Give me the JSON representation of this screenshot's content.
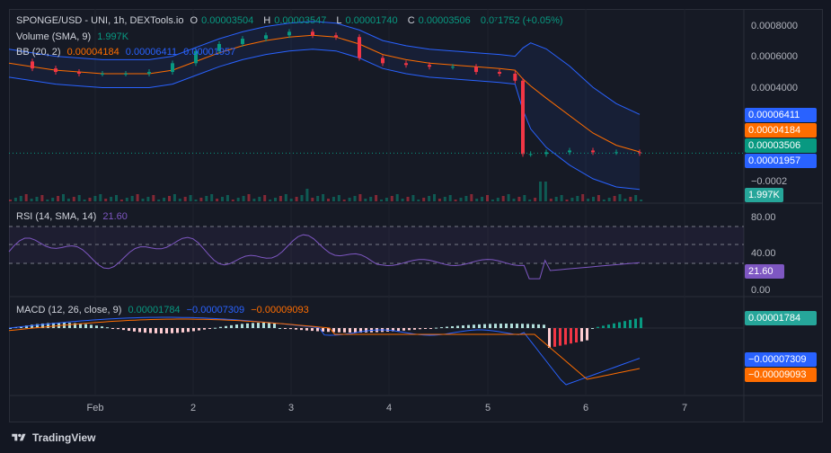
{
  "header": {
    "symbol": "SPONGE/USD - UNI, 1h, DEXTools.io",
    "ohlc": [
      {
        "k": "O",
        "v": "0.00003504"
      },
      {
        "k": "H",
        "v": "0.00003547"
      },
      {
        "k": "L",
        "v": "0.00001740"
      },
      {
        "k": "C",
        "v": "0.00003506"
      }
    ],
    "change": "0.0⁷1752 (+0.05%)",
    "volume_label": "Volume (SMA, 9)",
    "volume_value": "1.997K",
    "bb_label": "BB (20, 2)",
    "bb_values": [
      "0.00004184",
      "0.00006411",
      "0.00001957"
    ]
  },
  "rsi": {
    "label": "RSI (14, SMA, 14)",
    "value": "21.60"
  },
  "macd": {
    "label": "MACD (12, 26, close, 9)",
    "values": [
      "0.00001784",
      "−0.00007309",
      "−0.00009093"
    ]
  },
  "price_axis": [
    "0.0008000",
    "0.0006000",
    "0.0004000",
    "−0.0002"
  ],
  "rsi_axis": [
    "80.00",
    "40.00",
    "0.00"
  ],
  "tags": {
    "bb_upper": "0.00006411",
    "bb_mid": "0.00004184",
    "last": "0.00003506",
    "bb_lower": "0.00001957",
    "volume": "1.997K",
    "rsi": "21.60",
    "macd_hist": "0.00001784",
    "macd_line": "−0.00007309",
    "macd_signal": "−0.00009093"
  },
  "x_axis": [
    "Feb",
    "2",
    "3",
    "4",
    "5",
    "6",
    "7"
  ],
  "footer": {
    "brand": "TradingView"
  },
  "colors": {
    "up": "#089981",
    "down": "#f23645",
    "bb_band": "#2962ff",
    "bb_mid": "#ff6d00",
    "rsi": "#7e57c2",
    "macd": "#2962ff",
    "signal": "#ff6d00"
  },
  "chart_data": {
    "type": "line",
    "x": [
      0,
      6,
      12,
      18,
      24,
      30,
      36,
      42,
      48,
      54,
      60,
      66,
      72,
      78,
      84,
      90,
      96,
      102,
      108,
      114,
      120,
      126,
      130,
      132,
      134,
      138,
      144,
      150,
      156,
      162
    ],
    "x_unit": "hours since chart start",
    "series": [
      {
        "name": "SPONGE/USD",
        "values": [
          0.00056,
          0.00052,
          0.0005,
          0.00049,
          0.00049,
          0.00049,
          0.0005,
          0.00055,
          0.00062,
          0.00066,
          0.00069,
          0.00071,
          0.00073,
          0.00071,
          0.0007,
          0.00058,
          0.00055,
          0.00054,
          0.00053,
          0.00053,
          0.0005,
          0.00049,
          0.00045,
          3e-05,
          3e-05,
          4e-05,
          5e-05,
          4e-05,
          4e-05,
          3.5e-05
        ]
      },
      {
        "name": "BB (20, 2)",
        "values": [
          0.00055,
          0.00053,
          0.00051,
          0.0005,
          0.00049,
          0.00049,
          0.00049,
          0.00051,
          0.00056,
          0.00061,
          0.00065,
          0.00068,
          0.0007,
          0.00071,
          0.0007,
          0.00066,
          0.0006,
          0.00057,
          0.00055,
          0.00054,
          0.00053,
          0.00052,
          0.00051,
          0.00046,
          0.00042,
          0.00035,
          0.00025,
          0.00015,
          8e-05,
          4.184e-05
        ]
      }
    ],
    "ylim": [
      -0.0002,
      0.00084
    ]
  }
}
